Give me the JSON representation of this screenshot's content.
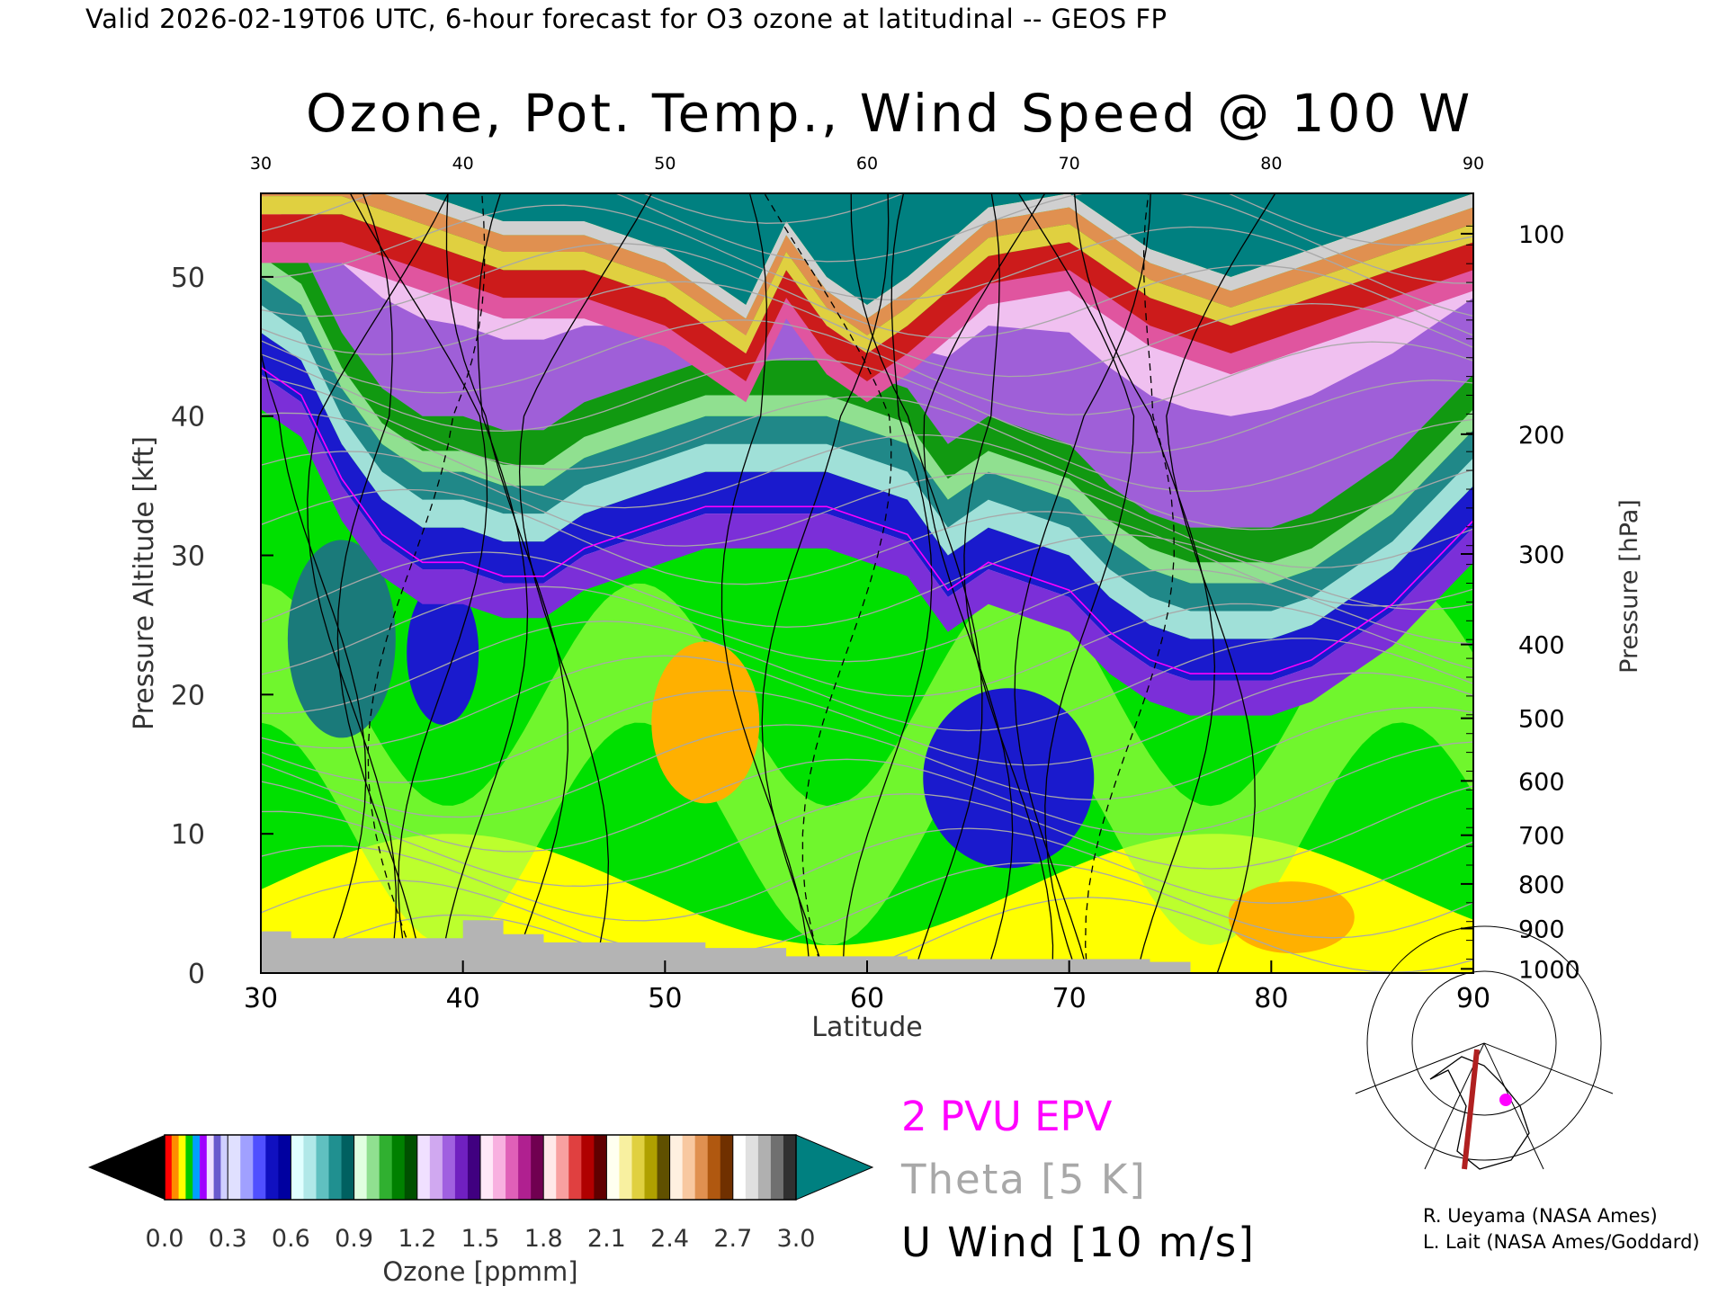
{
  "header": {
    "valid_line": "Valid 2026-02-19T06 UTC, 6-hour forecast for O3 ozone at latitudinal -- GEOS FP"
  },
  "chart_data": {
    "type": "heatmap",
    "title": "Ozone, Pot. Temp., Wind Speed @ 100 W",
    "xlabel": "Latitude",
    "ylabel": "Pressure Altitude [kft]",
    "y2label": "Pressure [hPa]",
    "xlim": [
      30,
      90
    ],
    "ylim": [
      0,
      56
    ],
    "x_ticks": [
      30,
      40,
      50,
      60,
      70,
      80,
      90
    ],
    "x_ticks_top": [
      30,
      40,
      50,
      60,
      70,
      80,
      90
    ],
    "y_ticks": [
      0,
      10,
      20,
      30,
      40,
      50
    ],
    "pressure_ticks": [
      {
        "hpa": 100,
        "kft": 53.1
      },
      {
        "hpa": 200,
        "kft": 38.7
      },
      {
        "hpa": 300,
        "kft": 30.1
      },
      {
        "hpa": 400,
        "kft": 23.6
      },
      {
        "hpa": 500,
        "kft": 18.3
      },
      {
        "hpa": 600,
        "kft": 13.8
      },
      {
        "hpa": 700,
        "kft": 9.9
      },
      {
        "hpa": 800,
        "kft": 6.4
      },
      {
        "hpa": 900,
        "kft": 3.2
      },
      {
        "hpa": 1000,
        "kft": 0.3
      }
    ],
    "tropopause_kft": [
      [
        30,
        44
      ],
      [
        32,
        42
      ],
      [
        34,
        36
      ],
      [
        36,
        32
      ],
      [
        38,
        30
      ],
      [
        40,
        30
      ],
      [
        42,
        29
      ],
      [
        44,
        29
      ],
      [
        46,
        31
      ],
      [
        48,
        32
      ],
      [
        50,
        33
      ],
      [
        52,
        34
      ],
      [
        54,
        34
      ],
      [
        56,
        34
      ],
      [
        58,
        34
      ],
      [
        60,
        33
      ],
      [
        62,
        32
      ],
      [
        64,
        28
      ],
      [
        66,
        30
      ],
      [
        68,
        29
      ],
      [
        70,
        28
      ],
      [
        72,
        25
      ],
      [
        74,
        23
      ],
      [
        76,
        22
      ],
      [
        78,
        22
      ],
      [
        80,
        22
      ],
      [
        82,
        23
      ],
      [
        84,
        25
      ],
      [
        86,
        27
      ],
      [
        88,
        30
      ],
      [
        90,
        33
      ]
    ],
    "stratosphere_top_kft": [
      [
        30,
        54
      ],
      [
        34,
        54
      ],
      [
        38,
        52
      ],
      [
        42,
        50
      ],
      [
        46,
        50
      ],
      [
        50,
        48
      ],
      [
        52,
        46
      ],
      [
        54,
        44
      ],
      [
        56,
        50
      ],
      [
        58,
        46
      ],
      [
        60,
        44
      ],
      [
        62,
        46
      ],
      [
        66,
        51
      ],
      [
        70,
        52
      ],
      [
        74,
        48
      ],
      [
        78,
        46
      ],
      [
        82,
        48
      ],
      [
        86,
        50
      ],
      [
        90,
        52
      ]
    ],
    "colorbar": {
      "label": "Ozone [ppmm]",
      "ticks": [
        "0.0",
        "0.3",
        "0.6",
        "0.9",
        "1.2",
        "1.5",
        "1.8",
        "2.1",
        "2.4",
        "2.7",
        "3.0"
      ],
      "segments": [
        {
          "from": 0.0,
          "to": 0.3,
          "colors": [
            "#ff0000",
            "#ff8c00",
            "#ffff00",
            "#00c800",
            "#00a0ff",
            "#a000ff",
            "#f0e0ff",
            "#6a5acd",
            "#d0d0ff"
          ]
        },
        {
          "from": 0.3,
          "to": 0.6,
          "colors": [
            "#e0e0ff",
            "#a0a0ff",
            "#5050ff",
            "#1010c0",
            "#0000a0"
          ]
        },
        {
          "from": 0.6,
          "to": 0.9,
          "colors": [
            "#e0ffff",
            "#b0e8e8",
            "#60c0c0",
            "#209090",
            "#006060"
          ]
        },
        {
          "from": 0.9,
          "to": 1.2,
          "colors": [
            "#e0ffe0",
            "#90e090",
            "#30b030",
            "#008000",
            "#005000"
          ]
        },
        {
          "from": 1.2,
          "to": 1.5,
          "colors": [
            "#f0e0ff",
            "#d0a8f0",
            "#a060e0",
            "#7020c0",
            "#400080"
          ]
        },
        {
          "from": 1.5,
          "to": 1.8,
          "colors": [
            "#ffe8f8",
            "#f8b0e0",
            "#e060b8",
            "#b02090",
            "#700050"
          ]
        },
        {
          "from": 1.8,
          "to": 2.1,
          "colors": [
            "#ffe8e8",
            "#f8a0a0",
            "#e04040",
            "#b00000",
            "#600000"
          ]
        },
        {
          "from": 2.1,
          "to": 2.4,
          "colors": [
            "#fffff0",
            "#f8f0a0",
            "#e0d040",
            "#b0a000",
            "#605000"
          ]
        },
        {
          "from": 2.4,
          "to": 2.7,
          "colors": [
            "#fff0e0",
            "#f8c8a0",
            "#e09050",
            "#b05810",
            "#703000"
          ]
        },
        {
          "from": 2.7,
          "to": 3.0,
          "colors": [
            "#ffffff",
            "#e0e0e0",
            "#b0b0b0",
            "#707070",
            "#303030"
          ]
        }
      ],
      "under_color": "#000000",
      "over_color": "#008080"
    },
    "legend": [
      {
        "label": "2 PVU EPV",
        "color": "#ff00ff"
      },
      {
        "label": "Theta [5 K]",
        "color": "#a8a8a8"
      },
      {
        "label": "U Wind [10 m/s]",
        "color": "#000000"
      }
    ],
    "field_colors": {
      "troposphere_low": "#ffff00",
      "troposphere_mid": "#00e000",
      "troposphere_high": "#a0ff40",
      "tropopause_band": "#1a1acd",
      "strat_low": "#9f5fd8",
      "strat_green": "#119911",
      "strat_pink": "#e0559f",
      "strat_red": "#cc1b1b",
      "strat_teal": "#008080",
      "orange_pocket": "#ffb000",
      "surface": "#b4b4b4"
    }
  },
  "credits": {
    "line1": "R. Ueyama (NASA Ames)",
    "line2": "L. Lait (NASA Ames/Goddard)"
  }
}
